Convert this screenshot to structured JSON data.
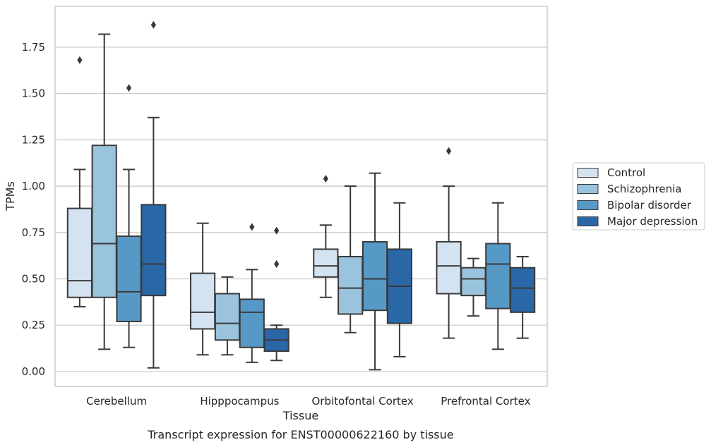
{
  "caption": "Transcript expression for ENST00000622160 by tissue",
  "chart_data": {
    "type": "box",
    "title": "",
    "xlabel": "Tissue",
    "ylabel": "TPMs",
    "ylim": [
      -0.08,
      1.97
    ],
    "yticks": [
      "0.00",
      "0.25",
      "0.50",
      "0.75",
      "1.00",
      "1.25",
      "1.50",
      "1.75"
    ],
    "categories": [
      "Cerebellum",
      "Hipppocampus",
      "Orbitofontal Cortex",
      "Prefrontal Cortex"
    ],
    "grid": "horizontal",
    "legend_position": "right",
    "series": [
      {
        "name": "Control",
        "color": "#d4e3f2",
        "boxes": [
          {
            "whisker_low": 0.35,
            "q1": 0.4,
            "median": 0.49,
            "q3": 0.88,
            "whisker_high": 1.09,
            "outliers": [
              1.68
            ]
          },
          {
            "whisker_low": 0.09,
            "q1": 0.23,
            "median": 0.32,
            "q3": 0.53,
            "whisker_high": 0.8,
            "outliers": []
          },
          {
            "whisker_low": 0.4,
            "q1": 0.51,
            "median": 0.57,
            "q3": 0.66,
            "whisker_high": 0.79,
            "outliers": [
              1.04
            ]
          },
          {
            "whisker_low": 0.18,
            "q1": 0.42,
            "median": 0.57,
            "q3": 0.7,
            "whisker_high": 1.0,
            "outliers": [
              1.19
            ]
          }
        ]
      },
      {
        "name": "Schizophrenia",
        "color": "#9ac3dd",
        "boxes": [
          {
            "whisker_low": 0.12,
            "q1": 0.4,
            "median": 0.69,
            "q3": 1.22,
            "whisker_high": 1.82,
            "outliers": []
          },
          {
            "whisker_low": 0.09,
            "q1": 0.17,
            "median": 0.26,
            "q3": 0.42,
            "whisker_high": 0.51,
            "outliers": []
          },
          {
            "whisker_low": 0.21,
            "q1": 0.31,
            "median": 0.45,
            "q3": 0.62,
            "whisker_high": 1.0,
            "outliers": []
          },
          {
            "whisker_low": 0.3,
            "q1": 0.41,
            "median": 0.5,
            "q3": 0.56,
            "whisker_high": 0.61,
            "outliers": []
          }
        ]
      },
      {
        "name": "Bipolar disorder",
        "color": "#5799c6",
        "boxes": [
          {
            "whisker_low": 0.13,
            "q1": 0.27,
            "median": 0.43,
            "q3": 0.73,
            "whisker_high": 1.09,
            "outliers": [
              1.53
            ]
          },
          {
            "whisker_low": 0.05,
            "q1": 0.13,
            "median": 0.32,
            "q3": 0.39,
            "whisker_high": 0.55,
            "outliers": [
              0.78
            ]
          },
          {
            "whisker_low": 0.01,
            "q1": 0.33,
            "median": 0.5,
            "q3": 0.7,
            "whisker_high": 1.07,
            "outliers": []
          },
          {
            "whisker_low": 0.12,
            "q1": 0.34,
            "median": 0.58,
            "q3": 0.69,
            "whisker_high": 0.91,
            "outliers": []
          }
        ]
      },
      {
        "name": "Major depression",
        "color": "#2967a7",
        "boxes": [
          {
            "whisker_low": 0.02,
            "q1": 0.41,
            "median": 0.58,
            "q3": 0.9,
            "whisker_high": 1.37,
            "outliers": [
              1.87
            ]
          },
          {
            "whisker_low": 0.06,
            "q1": 0.11,
            "median": 0.17,
            "q3": 0.23,
            "whisker_high": 0.25,
            "outliers": [
              0.58,
              0.76
            ]
          },
          {
            "whisker_low": 0.08,
            "q1": 0.26,
            "median": 0.46,
            "q3": 0.66,
            "whisker_high": 0.91,
            "outliers": []
          },
          {
            "whisker_low": 0.18,
            "q1": 0.32,
            "median": 0.45,
            "q3": 0.56,
            "whisker_high": 0.62,
            "outliers": []
          }
        ]
      }
    ]
  }
}
